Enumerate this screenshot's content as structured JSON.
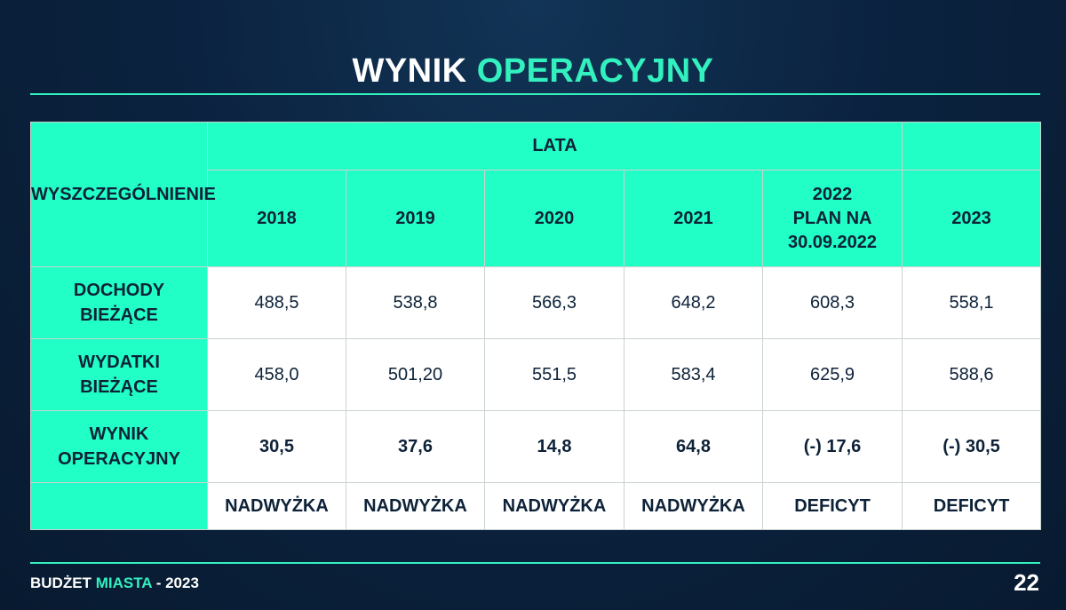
{
  "slide": {
    "title_white": "WYNIK",
    "title_accent": "OPERACYJNY"
  },
  "table": {
    "corner_header": "WYSZCZEGÓLNIENIE",
    "group_header": "LATA",
    "years": [
      "2018",
      "2019",
      "2020",
      "2021",
      "2022\nPLAN NA\n30.09.2022",
      "2023"
    ],
    "rows": [
      {
        "label": "DOCHODY\nBIEŻĄCE",
        "values": [
          "488,5",
          "538,8",
          "566,3",
          "648,2",
          "608,3",
          "558,1"
        ]
      },
      {
        "label": "WYDATKI\nBIEŻĄCE",
        "values": [
          "458,0",
          "501,20",
          "551,5",
          "583,4",
          "625,9",
          "588,6"
        ]
      },
      {
        "label": "WYNIK\nOPERACYJNY",
        "values": [
          "30,5",
          "37,6",
          "14,8",
          "64,8",
          "(-) 17,6",
          "(-) 30,5"
        ]
      },
      {
        "label": "",
        "values": [
          "NADWYŻKA",
          "NADWYŻKA",
          "NADWYŻKA",
          "NADWYŻKA",
          "DEFICYT",
          "DEFICYT"
        ]
      }
    ]
  },
  "footer": {
    "brand_white": "BUDŻET",
    "brand_accent": "MIASTA",
    "year_suffix": "- 2023",
    "page_number": "22"
  },
  "colors": {
    "accent": "#33f0bf",
    "table_header_bg": "#22ffc6",
    "background": "#0b2340",
    "text_dark": "#0d2238"
  }
}
